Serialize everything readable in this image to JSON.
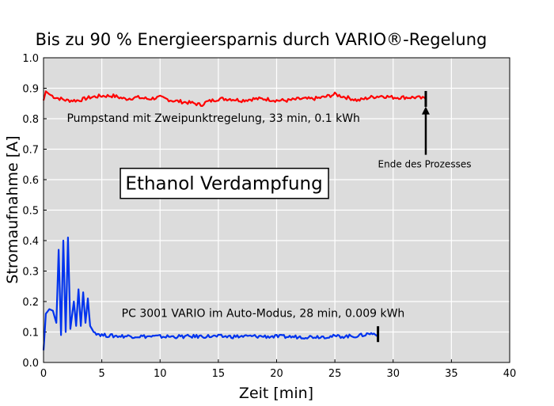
{
  "chart_data": {
    "type": "line",
    "title": "Bis zu 90 % Energieersparnis durch VARIO®-Regelung",
    "xlabel": "Zeit [min]",
    "ylabel": "Stromaufnahme [A]",
    "xlim": [
      0,
      40
    ],
    "ylim": [
      0,
      1.0
    ],
    "xticks": [
      0,
      5,
      10,
      15,
      20,
      25,
      30,
      35,
      40
    ],
    "yticks": [
      "0.0",
      "0.1",
      "0.2",
      "0.3",
      "0.4",
      "0.5",
      "0.6",
      "0.7",
      "0.8",
      "0.9",
      "1.0"
    ],
    "grid": true,
    "background": "#dcdcdc",
    "series": [
      {
        "color": "#ff0000",
        "end_marker_x": 32.8,
        "points": [
          [
            0,
            0.86
          ],
          [
            0.2,
            0.89
          ],
          [
            0.5,
            0.88
          ],
          [
            1,
            0.87
          ],
          [
            2,
            0.86
          ],
          [
            3,
            0.86
          ],
          [
            4,
            0.87
          ],
          [
            5,
            0.875
          ],
          [
            6,
            0.875
          ],
          [
            7,
            0.865
          ],
          [
            8,
            0.87
          ],
          [
            9,
            0.865
          ],
          [
            10,
            0.87
          ],
          [
            11,
            0.86
          ],
          [
            12,
            0.855
          ],
          [
            13,
            0.85
          ],
          [
            13.5,
            0.845
          ],
          [
            14,
            0.855
          ],
          [
            15,
            0.865
          ],
          [
            16,
            0.865
          ],
          [
            17,
            0.86
          ],
          [
            18,
            0.865
          ],
          [
            19,
            0.865
          ],
          [
            20,
            0.86
          ],
          [
            21,
            0.86
          ],
          [
            22,
            0.865
          ],
          [
            23,
            0.865
          ],
          [
            24,
            0.87
          ],
          [
            25,
            0.88
          ],
          [
            26,
            0.87
          ],
          [
            27,
            0.86
          ],
          [
            28,
            0.87
          ],
          [
            29,
            0.875
          ],
          [
            30,
            0.87
          ],
          [
            31,
            0.87
          ],
          [
            32,
            0.87
          ],
          [
            32.8,
            0.865
          ]
        ]
      },
      {
        "color": "#0033ee",
        "end_marker_x": 28.7,
        "points": [
          [
            0,
            0.04
          ],
          [
            0.2,
            0.16
          ],
          [
            0.5,
            0.175
          ],
          [
            0.8,
            0.17
          ],
          [
            1.1,
            0.13
          ],
          [
            1.3,
            0.37
          ],
          [
            1.5,
            0.09
          ],
          [
            1.7,
            0.4
          ],
          [
            1.9,
            0.1
          ],
          [
            2.1,
            0.41
          ],
          [
            2.3,
            0.11
          ],
          [
            2.6,
            0.2
          ],
          [
            2.8,
            0.12
          ],
          [
            3.0,
            0.24
          ],
          [
            3.2,
            0.12
          ],
          [
            3.4,
            0.23
          ],
          [
            3.6,
            0.13
          ],
          [
            3.8,
            0.21
          ],
          [
            4.0,
            0.12
          ],
          [
            4.3,
            0.1
          ],
          [
            5,
            0.09
          ],
          [
            6,
            0.087
          ],
          [
            8,
            0.086
          ],
          [
            10,
            0.085
          ],
          [
            12,
            0.085
          ],
          [
            14,
            0.086
          ],
          [
            16,
            0.085
          ],
          [
            18,
            0.086
          ],
          [
            20,
            0.085
          ],
          [
            22,
            0.084
          ],
          [
            24,
            0.085
          ],
          [
            26,
            0.086
          ],
          [
            27,
            0.087
          ],
          [
            28,
            0.095
          ],
          [
            28.7,
            0.093
          ]
        ]
      }
    ],
    "annotations": [
      {
        "text": "Pumpstand mit Zweipunktregelung, 33 min, 0.1 kWh",
        "x": 2,
        "y": 0.79
      },
      {
        "text": "PC 3001 VARIO im Auto-Modus, 28 min, 0.009 kWh",
        "x": 6.7,
        "y": 0.15
      },
      {
        "text": "Ende des Prozesses",
        "x": 32.7,
        "y": 0.64,
        "arrow_to": [
          32.8,
          0.84
        ]
      }
    ],
    "boxed_label": {
      "text": "Ethanol Verdampfung",
      "x": 7,
      "y": 0.58
    }
  }
}
